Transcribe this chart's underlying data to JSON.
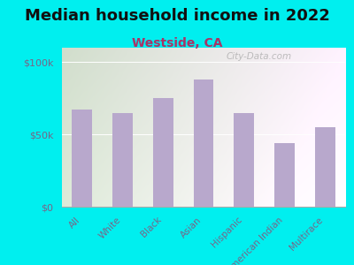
{
  "title": "Median household income in 2022",
  "subtitle": "Westside, CA",
  "categories": [
    "All",
    "White",
    "Black",
    "Asian",
    "Hispanic",
    "American Indian",
    "Multirace"
  ],
  "values": [
    67000,
    65000,
    75000,
    88000,
    65000,
    44000,
    55000
  ],
  "bar_color": "#b8a8cc",
  "background_outer": "#00EFEF",
  "background_inner_left": "#d4e8c8",
  "background_inner_right": "#f0f0ee",
  "ylim": [
    0,
    110000
  ],
  "yticks": [
    0,
    50000,
    100000
  ],
  "ytick_labels": [
    "$0",
    "$50k",
    "$100k"
  ],
  "title_fontsize": 13,
  "subtitle_fontsize": 10,
  "tick_label_fontsize": 7.5,
  "ytick_fontsize": 8,
  "title_color": "#111111",
  "subtitle_color": "#aa3366",
  "tick_color": "#776688",
  "ytick_color": "#776688",
  "watermark_text": "City-Data.com"
}
